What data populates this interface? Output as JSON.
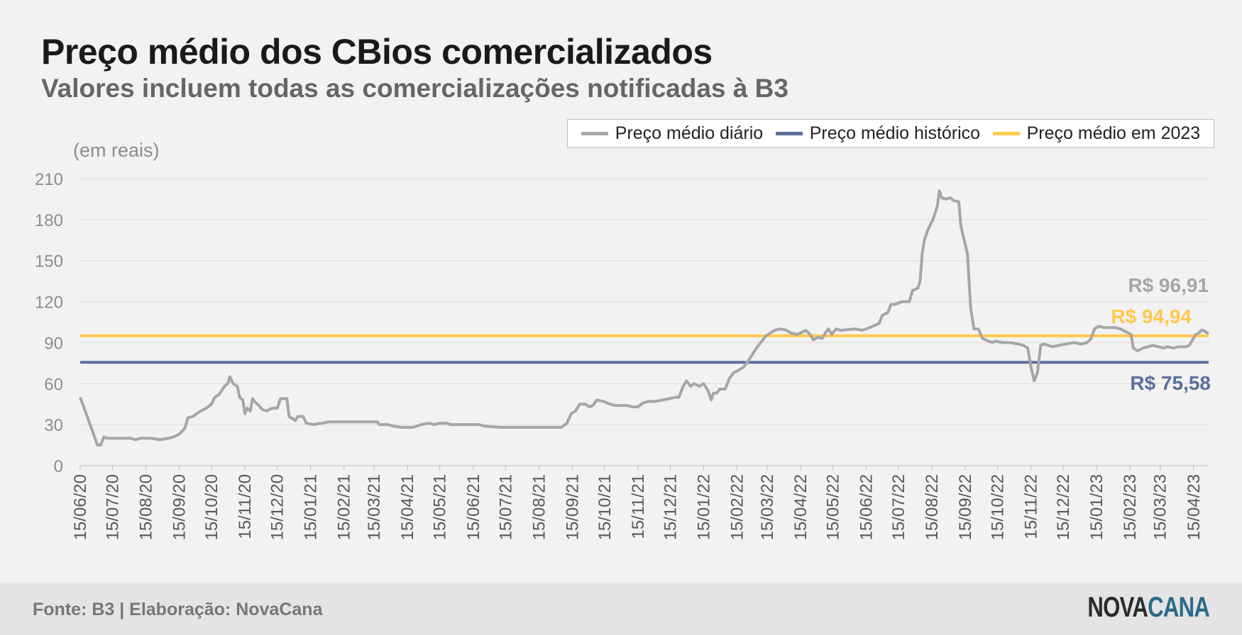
{
  "header": {
    "title": "Preço médio dos CBios comercializados",
    "subtitle": "Valores incluem todas as comercializações notificadas à B3"
  },
  "footer": {
    "source": "Fonte: B3 | Elaboração: NovaCana",
    "logo_part1": "NOVA",
    "logo_part2": "CANA"
  },
  "colors": {
    "daily": "#a6a6a6",
    "historic": "#5b6f9c",
    "year2023": "#ffc94a",
    "logo_dark": "#2b2b2b",
    "logo_accent": "#2a6b8a"
  },
  "chart_data": {
    "type": "line",
    "ylabel": "(em reais)",
    "ylim": [
      0,
      210
    ],
    "yticks": [
      0,
      30,
      60,
      90,
      120,
      150,
      180,
      210
    ],
    "xlim": [
      "2020-06-15",
      "2023-04-29"
    ],
    "xticks": [
      "15/06/20",
      "15/07/20",
      "15/08/20",
      "15/09/20",
      "15/10/20",
      "15/11/20",
      "15/12/20",
      "15/01/21",
      "15/02/21",
      "15/03/21",
      "15/04/21",
      "15/05/21",
      "15/06/21",
      "15/07/21",
      "15/08/21",
      "15/09/21",
      "15/10/21",
      "15/11/21",
      "15/12/21",
      "15/01/22",
      "15/02/22",
      "15/03/22",
      "15/04/22",
      "15/05/22",
      "15/06/22",
      "15/07/22",
      "15/08/22",
      "15/09/22",
      "15/10/22",
      "15/11/22",
      "15/12/22",
      "15/01/23",
      "15/02/23",
      "15/03/23",
      "15/04/23"
    ],
    "grid": true,
    "legend_position": "top-right",
    "series": [
      {
        "name": "Preço médio diário",
        "points": [
          [
            "2020-06-15",
            50
          ],
          [
            "2020-06-27",
            24
          ],
          [
            "2020-07-01",
            15
          ],
          [
            "2020-07-04",
            15
          ],
          [
            "2020-07-07",
            21
          ],
          [
            "2020-07-10",
            20
          ],
          [
            "2020-07-25",
            20
          ],
          [
            "2020-08-01",
            20
          ],
          [
            "2020-08-05",
            19
          ],
          [
            "2020-08-10",
            20
          ],
          [
            "2020-08-20",
            20
          ],
          [
            "2020-08-28",
            19
          ],
          [
            "2020-09-05",
            20
          ],
          [
            "2020-09-10",
            21
          ],
          [
            "2020-09-15",
            23
          ],
          [
            "2020-09-20",
            27
          ],
          [
            "2020-09-23",
            35
          ],
          [
            "2020-09-28",
            36
          ],
          [
            "2020-10-01",
            38
          ],
          [
            "2020-10-05",
            40
          ],
          [
            "2020-10-10",
            42
          ],
          [
            "2020-10-15",
            45
          ],
          [
            "2020-10-18",
            50
          ],
          [
            "2020-10-22",
            52
          ],
          [
            "2020-10-27",
            58
          ],
          [
            "2020-10-30",
            60
          ],
          [
            "2020-11-01",
            65
          ],
          [
            "2020-11-04",
            60
          ],
          [
            "2020-11-08",
            58
          ],
          [
            "2020-11-10",
            50
          ],
          [
            "2020-11-13",
            48
          ],
          [
            "2020-11-15",
            38
          ],
          [
            "2020-11-17",
            42
          ],
          [
            "2020-11-20",
            40
          ],
          [
            "2020-11-22",
            49
          ],
          [
            "2020-11-25",
            46
          ],
          [
            "2020-11-28",
            44
          ],
          [
            "2020-12-01",
            41
          ],
          [
            "2020-12-05",
            40
          ],
          [
            "2020-12-10",
            42
          ],
          [
            "2020-12-15",
            42
          ],
          [
            "2020-12-18",
            49
          ],
          [
            "2020-12-24",
            49
          ],
          [
            "2020-12-26",
            36
          ],
          [
            "2021-01-01",
            33
          ],
          [
            "2021-01-03",
            36
          ],
          [
            "2021-01-08",
            36
          ],
          [
            "2021-01-11",
            31
          ],
          [
            "2021-01-18",
            30
          ],
          [
            "2021-01-25",
            31
          ],
          [
            "2021-02-01",
            32
          ],
          [
            "2021-03-01",
            32
          ],
          [
            "2021-03-18",
            32
          ],
          [
            "2021-03-20",
            30
          ],
          [
            "2021-03-28",
            30
          ],
          [
            "2021-04-01",
            29
          ],
          [
            "2021-04-10",
            28
          ],
          [
            "2021-04-20",
            28
          ],
          [
            "2021-04-28",
            30
          ],
          [
            "2021-05-05",
            31
          ],
          [
            "2021-05-10",
            30
          ],
          [
            "2021-05-15",
            31
          ],
          [
            "2021-05-22",
            31
          ],
          [
            "2021-05-25",
            30
          ],
          [
            "2021-06-10",
            30
          ],
          [
            "2021-06-20",
            30
          ],
          [
            "2021-06-25",
            29
          ],
          [
            "2021-07-10",
            28
          ],
          [
            "2021-07-20",
            28
          ],
          [
            "2021-09-01",
            28
          ],
          [
            "2021-09-05",
            28
          ],
          [
            "2021-09-10",
            31
          ],
          [
            "2021-09-14",
            38
          ],
          [
            "2021-09-18",
            40
          ],
          [
            "2021-09-22",
            45
          ],
          [
            "2021-09-27",
            45
          ],
          [
            "2021-10-01",
            43
          ],
          [
            "2021-10-04",
            44
          ],
          [
            "2021-10-08",
            48
          ],
          [
            "2021-10-14",
            47
          ],
          [
            "2021-10-20",
            45
          ],
          [
            "2021-10-25",
            44
          ],
          [
            "2021-11-05",
            44
          ],
          [
            "2021-11-10",
            43
          ],
          [
            "2021-11-15",
            43
          ],
          [
            "2021-11-20",
            46
          ],
          [
            "2021-11-25",
            47
          ],
          [
            "2021-12-01",
            47
          ],
          [
            "2021-12-08",
            48
          ],
          [
            "2021-12-14",
            49
          ],
          [
            "2021-12-20",
            50
          ],
          [
            "2021-12-23",
            50
          ],
          [
            "2021-12-27",
            58
          ],
          [
            "2021-12-30",
            62
          ],
          [
            "2022-01-03",
            58
          ],
          [
            "2022-01-06",
            60
          ],
          [
            "2022-01-11",
            58
          ],
          [
            "2022-01-15",
            60
          ],
          [
            "2022-01-19",
            55
          ],
          [
            "2022-01-22",
            48
          ],
          [
            "2022-01-24",
            53
          ],
          [
            "2022-01-27",
            53
          ],
          [
            "2022-01-30",
            56
          ],
          [
            "2022-02-04",
            56
          ],
          [
            "2022-02-08",
            64
          ],
          [
            "2022-02-12",
            68
          ],
          [
            "2022-02-17",
            70
          ],
          [
            "2022-02-21",
            72
          ],
          [
            "2022-02-25",
            76
          ],
          [
            "2022-03-01",
            81
          ],
          [
            "2022-03-05",
            86
          ],
          [
            "2022-03-10",
            91
          ],
          [
            "2022-03-14",
            95
          ],
          [
            "2022-03-18",
            97
          ],
          [
            "2022-03-22",
            99
          ],
          [
            "2022-03-27",
            100
          ],
          [
            "2022-04-02",
            99
          ],
          [
            "2022-04-06",
            97
          ],
          [
            "2022-04-12",
            96
          ],
          [
            "2022-04-20",
            99
          ],
          [
            "2022-04-24",
            96
          ],
          [
            "2022-04-27",
            92
          ],
          [
            "2022-05-01",
            94
          ],
          [
            "2022-05-05",
            93
          ],
          [
            "2022-05-08",
            97
          ],
          [
            "2022-05-11",
            100
          ],
          [
            "2022-05-14",
            96
          ],
          [
            "2022-05-18",
            100
          ],
          [
            "2022-05-22",
            99
          ],
          [
            "2022-06-05",
            100
          ],
          [
            "2022-06-11",
            99
          ],
          [
            "2022-06-15",
            100
          ],
          [
            "2022-06-21",
            102
          ],
          [
            "2022-06-27",
            104
          ],
          [
            "2022-06-30",
            110
          ],
          [
            "2022-07-05",
            112
          ],
          [
            "2022-07-08",
            118
          ],
          [
            "2022-07-12",
            118
          ],
          [
            "2022-07-18",
            120
          ],
          [
            "2022-07-25",
            120
          ],
          [
            "2022-07-28",
            128
          ],
          [
            "2022-08-02",
            130
          ],
          [
            "2022-08-04",
            135
          ],
          [
            "2022-08-06",
            155
          ],
          [
            "2022-08-08",
            165
          ],
          [
            "2022-08-11",
            172
          ],
          [
            "2022-08-14",
            177
          ],
          [
            "2022-08-16",
            180
          ],
          [
            "2022-08-20",
            190
          ],
          [
            "2022-08-22",
            201
          ],
          [
            "2022-08-24",
            196
          ],
          [
            "2022-08-28",
            195
          ],
          [
            "2022-09-01",
            196
          ],
          [
            "2022-09-04",
            194
          ],
          [
            "2022-09-09",
            193
          ],
          [
            "2022-09-11",
            175
          ],
          [
            "2022-09-14",
            165
          ],
          [
            "2022-09-17",
            155
          ],
          [
            "2022-09-20",
            115
          ],
          [
            "2022-09-23",
            100
          ],
          [
            "2022-09-27",
            100
          ],
          [
            "2022-10-01",
            93
          ],
          [
            "2022-10-04",
            92
          ],
          [
            "2022-10-10",
            90
          ],
          [
            "2022-10-13",
            91
          ],
          [
            "2022-10-20",
            90
          ],
          [
            "2022-10-27",
            90
          ],
          [
            "2022-11-03",
            89
          ],
          [
            "2022-11-08",
            88
          ],
          [
            "2022-11-12",
            86
          ],
          [
            "2022-11-15",
            72
          ],
          [
            "2022-11-18",
            62
          ],
          [
            "2022-11-21",
            68
          ],
          [
            "2022-11-24",
            88
          ],
          [
            "2022-11-27",
            89
          ],
          [
            "2022-12-01",
            88
          ],
          [
            "2022-12-05",
            87
          ],
          [
            "2022-12-11",
            88
          ],
          [
            "2022-12-18",
            89
          ],
          [
            "2022-12-25",
            90
          ],
          [
            "2023-01-01",
            89
          ],
          [
            "2023-01-06",
            90
          ],
          [
            "2023-01-10",
            93
          ],
          [
            "2023-01-13",
            100
          ],
          [
            "2023-01-17",
            102
          ],
          [
            "2023-01-22",
            101
          ],
          [
            "2023-02-01",
            101
          ],
          [
            "2023-02-06",
            100
          ],
          [
            "2023-02-11",
            98
          ],
          [
            "2023-02-16",
            96
          ],
          [
            "2023-02-18",
            86
          ],
          [
            "2023-02-22",
            84
          ],
          [
            "2023-02-27",
            86
          ],
          [
            "2023-03-04",
            87
          ],
          [
            "2023-03-08",
            88
          ],
          [
            "2023-03-13",
            87
          ],
          [
            "2023-03-18",
            86
          ],
          [
            "2023-03-22",
            87
          ],
          [
            "2023-03-27",
            86
          ],
          [
            "2023-04-01",
            87
          ],
          [
            "2023-04-08",
            87
          ],
          [
            "2023-04-11",
            88
          ],
          [
            "2023-04-14",
            92
          ],
          [
            "2023-04-17",
            96
          ],
          [
            "2023-04-20",
            97
          ],
          [
            "2023-04-22",
            99
          ],
          [
            "2023-04-24",
            99
          ],
          [
            "2023-04-26",
            98
          ],
          [
            "2023-04-28",
            97
          ],
          [
            "2023-04-29",
            96.91
          ]
        ]
      },
      {
        "name": "Preço médio histórico",
        "constant": 75.58
      },
      {
        "name": "Preço médio em 2023",
        "constant": 94.94
      }
    ],
    "annotations": [
      {
        "text": "R$ 96,91",
        "series": 0
      },
      {
        "text": "R$ 94,94",
        "series": 2
      },
      {
        "text": "R$ 75,58",
        "series": 1
      }
    ]
  }
}
